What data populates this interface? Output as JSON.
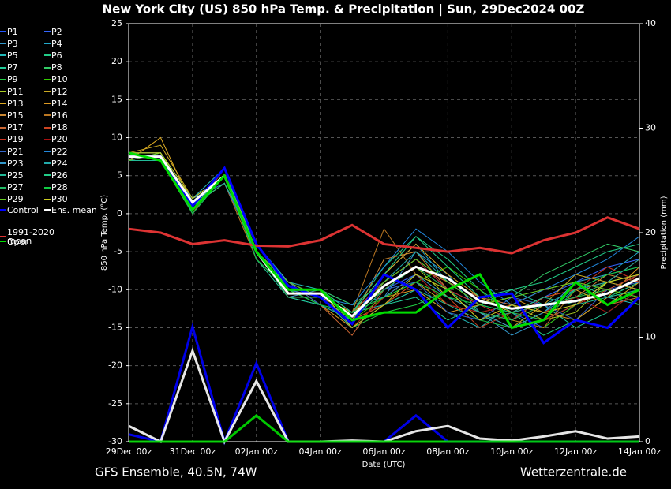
{
  "chart_data": {
    "type": "line",
    "title": "New York City  (US)  850 hPa Temp. & Precipitation | Sun, 29Dec2024 00Z",
    "xlabel": "Date (UTC)",
    "ylabel": "850 hPa Temp. (°C)",
    "y2label": "Precipitation (mm)",
    "source_left": "GFS Ensemble, 40.5N, 74W",
    "source_right": "Wetterzentrale.de",
    "categories": [
      "29Dec 00z",
      null,
      "31Dec 00z",
      null,
      "02Jan 00z",
      null,
      "04Jan 00z",
      null,
      "06Jan 00z",
      null,
      "08Jan 00z",
      null,
      "10Jan 00z",
      null,
      "12Jan 00z",
      null,
      "14Jan 00z"
    ],
    "ylim": [
      -30,
      25
    ],
    "yticks": [
      -30,
      -25,
      -20,
      -15,
      -10,
      -5,
      0,
      5,
      10,
      15,
      20,
      25
    ],
    "y2lim": [
      0,
      40
    ],
    "y2ticks": [
      0,
      10,
      20,
      30,
      40
    ],
    "grid": true,
    "series": [
      {
        "name": "P1",
        "color": "#2255ff",
        "values": [
          8,
          7,
          2,
          5,
          -4,
          -9,
          -11,
          -14,
          -9,
          -6,
          -10,
          -12,
          -13,
          -15,
          -12,
          -10,
          -8
        ]
      },
      {
        "name": "P2",
        "color": "#3366ff",
        "values": [
          7,
          8,
          1,
          4,
          -5,
          -10,
          -11,
          -13,
          -10,
          -8,
          -12,
          -13,
          -14,
          -11,
          -9,
          -7,
          -6
        ]
      },
      {
        "name": "P3",
        "color": "#3399cc",
        "values": [
          7,
          7,
          2,
          6,
          -6,
          -10,
          -10,
          -12,
          -11,
          -5,
          -8,
          -13,
          -16,
          -14,
          -12,
          -9,
          -10
        ]
      },
      {
        "name": "P4",
        "color": "#22aacc",
        "values": [
          8,
          8,
          0,
          5,
          -5,
          -11,
          -12,
          -14,
          -8,
          -4,
          -9,
          -11,
          -12,
          -13,
          -10,
          -8,
          -5
        ]
      },
      {
        "name": "P5",
        "color": "#22bbbb",
        "values": [
          7,
          7,
          1,
          5,
          -4,
          -9,
          -10,
          -13,
          -12,
          -10,
          -13,
          -15,
          -12,
          -10,
          -9,
          -11,
          -12
        ]
      },
      {
        "name": "P6",
        "color": "#22cc88",
        "values": [
          8,
          8,
          2,
          4,
          -5,
          -10,
          -11,
          -13,
          -7,
          -3,
          -6,
          -10,
          -13,
          -16,
          -14,
          -11,
          -9
        ]
      },
      {
        "name": "P7",
        "color": "#22cc99",
        "values": [
          7,
          8,
          1,
          5,
          -6,
          -11,
          -12,
          -14,
          -12,
          -11,
          -14,
          -12,
          -10,
          -12,
          -15,
          -13,
          -10
        ]
      },
      {
        "name": "P8",
        "color": "#33cc66",
        "values": [
          8,
          7,
          0,
          6,
          -5,
          -10,
          -10,
          -12,
          -9,
          -6,
          -9,
          -12,
          -11,
          -8,
          -6,
          -4,
          -5
        ]
      },
      {
        "name": "P9",
        "color": "#22cc44",
        "values": [
          7,
          8,
          2,
          5,
          -5,
          -9,
          -11,
          -15,
          -13,
          -12,
          -10,
          -14,
          -15,
          -13,
          -11,
          -10,
          -12
        ]
      },
      {
        "name": "P10",
        "color": "#33cc00",
        "values": [
          8,
          7,
          1,
          5,
          -4,
          -10,
          -12,
          -14,
          -11,
          -9,
          -7,
          -10,
          -14,
          -15,
          -12,
          -10,
          -11
        ]
      },
      {
        "name": "P11",
        "color": "#aacc22",
        "values": [
          7,
          8,
          1,
          4,
          -5,
          -11,
          -11,
          -13,
          -10,
          -7,
          -11,
          -13,
          -12,
          -14,
          -13,
          -9,
          -8
        ]
      },
      {
        "name": "P12",
        "color": "#ccaa22",
        "values": [
          8,
          9,
          2,
          5,
          -6,
          -10,
          -10,
          -14,
          -12,
          -9,
          -12,
          -13,
          -15,
          -12,
          -8,
          -9,
          -10
        ]
      },
      {
        "name": "P13",
        "color": "#ddaa22",
        "values": [
          7,
          10,
          1,
          5,
          -5,
          -9,
          -11,
          -13,
          -8,
          -4,
          -8,
          -11,
          -13,
          -11,
          -10,
          -12,
          -9
        ]
      },
      {
        "name": "P14",
        "color": "#dd9922",
        "values": [
          8,
          8,
          0,
          6,
          -4,
          -10,
          -12,
          -15,
          -11,
          -10,
          -13,
          -12,
          -11,
          -13,
          -14,
          -11,
          -7
        ]
      },
      {
        "name": "P15",
        "color": "#cc8833",
        "values": [
          7,
          8,
          2,
          5,
          -5,
          -11,
          -11,
          -14,
          -6,
          -5,
          -10,
          -14,
          -13,
          -12,
          -11,
          -8,
          -9
        ]
      },
      {
        "name": "P16",
        "color": "#bb7722",
        "values": [
          8,
          7,
          1,
          4,
          -6,
          -10,
          -10,
          -13,
          -2,
          -8,
          -12,
          -13,
          -14,
          -15,
          -10,
          -9,
          -6
        ]
      },
      {
        "name": "P17",
        "color": "#cc6633",
        "values": [
          7,
          8,
          1,
          5,
          -5,
          -9,
          -12,
          -16,
          -10,
          -7,
          -9,
          -11,
          -12,
          -10,
          -9,
          -12,
          -11
        ]
      },
      {
        "name": "P18",
        "color": "#cc4422",
        "values": [
          8,
          8,
          2,
          5,
          -4,
          -10,
          -11,
          -14,
          -12,
          -9,
          -11,
          -15,
          -13,
          -14,
          -12,
          -10,
          -8
        ]
      },
      {
        "name": "P19",
        "color": "#cc3322",
        "values": [
          7,
          7,
          0,
          6,
          -5,
          -11,
          -10,
          -13,
          -9,
          -6,
          -10,
          -12,
          -14,
          -11,
          -10,
          -7,
          -9
        ]
      },
      {
        "name": "P20",
        "color": "#aa1111",
        "values": [
          8,
          8,
          1,
          5,
          -6,
          -10,
          -11,
          -15,
          -11,
          -8,
          -12,
          -13,
          -12,
          -13,
          -11,
          -13,
          -10
        ]
      },
      {
        "name": "P21",
        "color": "#3366cc",
        "values": [
          7,
          8,
          2,
          4,
          -5,
          -9,
          -12,
          -14,
          -10,
          -9,
          -13,
          -14,
          -11,
          -12,
          -14,
          -10,
          -9
        ]
      },
      {
        "name": "P22",
        "color": "#2288dd",
        "values": [
          8,
          7,
          1,
          5,
          -4,
          -10,
          -11,
          -12,
          -7,
          -2,
          -5,
          -9,
          -12,
          -10,
          -8,
          -6,
          -3
        ]
      },
      {
        "name": "P23",
        "color": "#3399cc",
        "values": [
          7,
          8,
          0,
          5,
          -5,
          -11,
          -10,
          -13,
          -11,
          -8,
          -11,
          -13,
          -15,
          -13,
          -9,
          -8,
          -7
        ]
      },
      {
        "name": "P24",
        "color": "#22aaaa",
        "values": [
          8,
          8,
          2,
          6,
          -6,
          -10,
          -12,
          -14,
          -9,
          -5,
          -9,
          -12,
          -13,
          -12,
          -10,
          -9,
          -6
        ]
      },
      {
        "name": "P25",
        "color": "#22bb99",
        "values": [
          7,
          7,
          1,
          5,
          -5,
          -9,
          -11,
          -15,
          -12,
          -10,
          -12,
          -14,
          -13,
          -11,
          -12,
          -11,
          -10
        ]
      },
      {
        "name": "P26",
        "color": "#22cc88",
        "values": [
          8,
          8,
          1,
          4,
          -4,
          -10,
          -10,
          -13,
          -8,
          -3,
          -7,
          -11,
          -10,
          -9,
          -7,
          -5,
          -4
        ]
      },
      {
        "name": "P27",
        "color": "#22bb66",
        "values": [
          7,
          8,
          2,
          5,
          -5,
          -11,
          -11,
          -14,
          -10,
          -7,
          -10,
          -13,
          -14,
          -12,
          -11,
          -9,
          -8
        ]
      },
      {
        "name": "P28",
        "color": "#11cc44",
        "values": [
          8,
          7,
          0,
          5,
          -6,
          -10,
          -12,
          -13,
          -11,
          -9,
          -11,
          -12,
          -13,
          -14,
          -10,
          -8,
          -7
        ]
      },
      {
        "name": "P29",
        "color": "#66cc22",
        "values": [
          7,
          8,
          1,
          6,
          -5,
          -9,
          -11,
          -14,
          -9,
          -6,
          -9,
          -12,
          -11,
          -10,
          -9,
          -10,
          -11
        ]
      },
      {
        "name": "P30",
        "color": "#cccc22",
        "values": [
          8,
          8,
          2,
          5,
          -5,
          -10,
          -10,
          -15,
          -12,
          -8,
          -10,
          -14,
          -12,
          -13,
          -12,
          -9,
          -8
        ]
      },
      {
        "name": "Control",
        "color": "#0000ff",
        "values": [
          7.5,
          7.5,
          1,
          6,
          -4,
          -9.5,
          -11,
          -14.5,
          -8,
          -10,
          -15,
          -11,
          -10.5,
          -17,
          -14,
          -15,
          -11
        ],
        "precip": [
          0.7,
          0,
          11,
          0,
          7.5,
          0,
          0,
          0,
          0,
          2.5,
          0,
          0,
          0,
          0,
          0,
          0,
          0
        ]
      },
      {
        "name": "Ens. mean",
        "color": "#ffffff",
        "values": [
          7.5,
          7.5,
          1.5,
          5,
          -5,
          -10.5,
          -10.5,
          -13.5,
          -9.5,
          -7,
          -8.5,
          -11.5,
          -12.5,
          -12,
          -11.5,
          -10.5,
          -8.5
        ],
        "precip": [
          1.5,
          0,
          8.7,
          0,
          5.8,
          0,
          0,
          0.1,
          0,
          1,
          1.5,
          0.3,
          0.1,
          0.5,
          1,
          0.3,
          0.5
        ]
      },
      {
        "name": "1991-2020 mean",
        "color": "#dd3333",
        "values": [
          -2,
          -2.5,
          -4,
          -3.5,
          -4.2,
          -4.3,
          -3.5,
          -1.5,
          -4,
          -4.5,
          -5,
          -4.5,
          -5.2,
          -3.5,
          -2.5,
          -0.5,
          -2
        ]
      },
      {
        "name": "Oper",
        "color": "#00dd00",
        "values": [
          8,
          7,
          0.5,
          5,
          -5,
          -10,
          -10,
          -14,
          -13,
          -13,
          -10,
          -8,
          -15,
          -14,
          -9,
          -12,
          -10
        ],
        "precip": [
          0,
          0,
          0,
          0,
          2.5,
          0,
          0,
          0,
          0,
          0,
          0,
          0,
          0,
          0,
          0,
          0,
          0
        ]
      }
    ]
  }
}
